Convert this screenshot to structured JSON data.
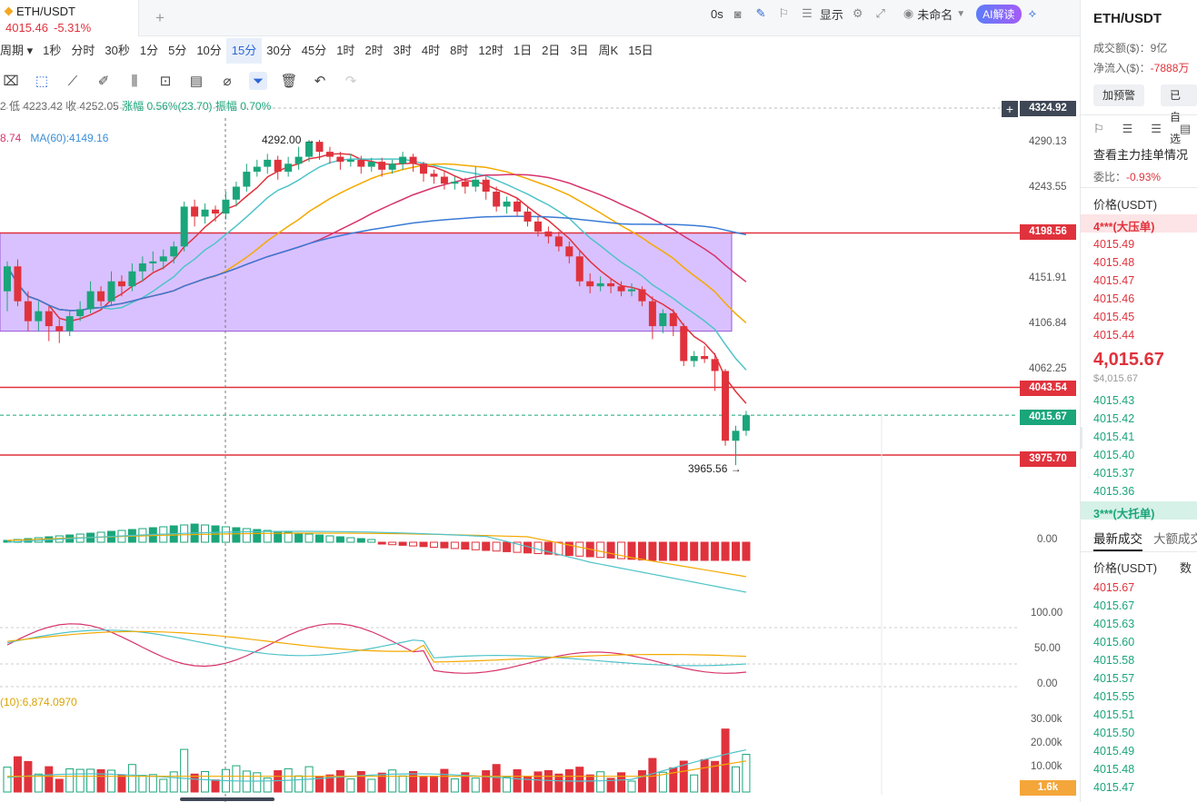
{
  "tab": {
    "symbol": "ETH/USDT",
    "price": "4015.46",
    "change": "-5.31%",
    "add": "+"
  },
  "intervals": [
    "周期",
    "1秒",
    "分时",
    "30秒",
    "1分",
    "5分",
    "10分",
    "15分",
    "30分",
    "45分",
    "1时",
    "2时",
    "3时",
    "4时",
    "8时",
    "12时",
    "1日",
    "2日",
    "3日",
    "周K",
    "15日"
  ],
  "active_interval": "15分",
  "toolbar_right": {
    "countdown": "0s",
    "display": "显示",
    "layout": "未命名",
    "ai": "AI解读"
  },
  "ohlc_text": {
    "low": "低 4223.42",
    "close": "收 4252.05",
    "change": "涨幅 0.56%(23.70)",
    "amp": "振幅 0.70%",
    "prefix": "2"
  },
  "ma_text": {
    "a": "8.74",
    "b": "MA(60):4149.16"
  },
  "vol_text": "(10):6,874.0970",
  "annotations": {
    "high": "4292.00",
    "low": "3965.56"
  },
  "price_axis": [
    "4290.13",
    "4243.55",
    "4151.91",
    "4106.84",
    "4062.25"
  ],
  "price_tags": {
    "top": "4324.92",
    "r1": "4198.56",
    "r2": "4043.54",
    "current": "4015.67",
    "r3": "3975.70",
    "vol": "1.6k"
  },
  "macd_axis": "0.00",
  "kdj_axis": [
    "100.00",
    "50.00",
    "0.00"
  ],
  "vol_axis": [
    "30.00k",
    "20.00k",
    "10.00k"
  ],
  "colors": {
    "up": "#1aa57a",
    "down": "#e0323c",
    "box": "#c9a6ff",
    "ma5": "#e0323c",
    "ma10": "#4fc3c9",
    "ma20": "#f4a900",
    "ma30": "#d6336c",
    "ma60": "#3a7bd5"
  },
  "chart_data": {
    "type": "candlestick",
    "interval": "15分",
    "symbol": "ETH/USDT",
    "ylim": [
      3955,
      4325
    ],
    "last_price": 4015.67,
    "high_marker": 4292.0,
    "low_marker": 3965.56,
    "horizontal_levels": [
      4198.56,
      4043.54,
      3975.7
    ],
    "box": {
      "top": 4198.56,
      "bottom": 4100.0
    },
    "candles": [
      [
        4140,
        4165,
        4170,
        4120
      ],
      [
        4165,
        4130,
        4172,
        4125
      ],
      [
        4130,
        4110,
        4140,
        4100
      ],
      [
        4110,
        4120,
        4130,
        4100
      ],
      [
        4120,
        4105,
        4125,
        4090
      ],
      [
        4105,
        4100,
        4112,
        4088
      ],
      [
        4100,
        4115,
        4120,
        4095
      ],
      [
        4115,
        4122,
        4130,
        4110
      ],
      [
        4122,
        4140,
        4150,
        4118
      ],
      [
        4140,
        4130,
        4145,
        4125
      ],
      [
        4130,
        4150,
        4160,
        4125
      ],
      [
        4150,
        4145,
        4156,
        4135
      ],
      [
        4145,
        4160,
        4168,
        4140
      ],
      [
        4160,
        4168,
        4175,
        4150
      ],
      [
        4168,
        4170,
        4180,
        4160
      ],
      [
        4170,
        4175,
        4182,
        4162
      ],
      [
        4175,
        4185,
        4190,
        4168
      ],
      [
        4185,
        4225,
        4230,
        4180
      ],
      [
        4225,
        4215,
        4232,
        4205
      ],
      [
        4215,
        4222,
        4228,
        4208
      ],
      [
        4222,
        4218,
        4226,
        4210
      ],
      [
        4218,
        4232,
        4240,
        4212
      ],
      [
        4232,
        4245,
        4250,
        4225
      ],
      [
        4245,
        4260,
        4268,
        4240
      ],
      [
        4260,
        4265,
        4272,
        4255
      ],
      [
        4265,
        4272,
        4278,
        4258
      ],
      [
        4272,
        4260,
        4276,
        4252
      ],
      [
        4260,
        4268,
        4275,
        4255
      ],
      [
        4268,
        4275,
        4285,
        4262
      ],
      [
        4275,
        4290,
        4292,
        4270
      ],
      [
        4290,
        4280,
        4292,
        4272
      ],
      [
        4280,
        4275,
        4285,
        4268
      ],
      [
        4275,
        4270,
        4280,
        4262
      ],
      [
        4270,
        4272,
        4278,
        4265
      ],
      [
        4272,
        4265,
        4276,
        4258
      ],
      [
        4265,
        4270,
        4274,
        4260
      ],
      [
        4270,
        4262,
        4274,
        4255
      ],
      [
        4262,
        4268,
        4272,
        4258
      ],
      [
        4268,
        4275,
        4280,
        4262
      ],
      [
        4275,
        4268,
        4278,
        4260
      ],
      [
        4268,
        4258,
        4270,
        4250
      ],
      [
        4258,
        4255,
        4262,
        4248
      ],
      [
        4255,
        4248,
        4260,
        4242
      ],
      [
        4248,
        4250,
        4255,
        4242
      ],
      [
        4250,
        4245,
        4254,
        4238
      ],
      [
        4245,
        4252,
        4265,
        4240
      ],
      [
        4252,
        4240,
        4255,
        4232
      ],
      [
        4240,
        4225,
        4245,
        4220
      ],
      [
        4225,
        4230,
        4235,
        4218
      ],
      [
        4230,
        4220,
        4234,
        4215
      ],
      [
        4220,
        4210,
        4225,
        4205
      ],
      [
        4210,
        4200,
        4215,
        4195
      ],
      [
        4200,
        4195,
        4205,
        4188
      ],
      [
        4195,
        4185,
        4200,
        4180
      ],
      [
        4185,
        4175,
        4190,
        4168
      ],
      [
        4175,
        4150,
        4180,
        4145
      ],
      [
        4150,
        4145,
        4158,
        4138
      ],
      [
        4145,
        4148,
        4155,
        4140
      ],
      [
        4148,
        4145,
        4152,
        4138
      ],
      [
        4145,
        4140,
        4150,
        4135
      ],
      [
        4140,
        4142,
        4148,
        4135
      ],
      [
        4142,
        4130,
        4145,
        4125
      ],
      [
        4130,
        4105,
        4135,
        4092
      ],
      [
        4105,
        4118,
        4122,
        4098
      ],
      [
        4118,
        4105,
        4122,
        4095
      ],
      [
        4105,
        4070,
        4108,
        4065
      ],
      [
        4070,
        4075,
        4080,
        4064
      ],
      [
        4075,
        4072,
        4085,
        4068
      ],
      [
        4072,
        4060,
        4078,
        4040
      ],
      [
        4060,
        3990,
        4062,
        3985
      ],
      [
        3990,
        4000,
        4005,
        3965.56
      ],
      [
        4000,
        4015.67,
        4020,
        3995
      ]
    ]
  }
}
